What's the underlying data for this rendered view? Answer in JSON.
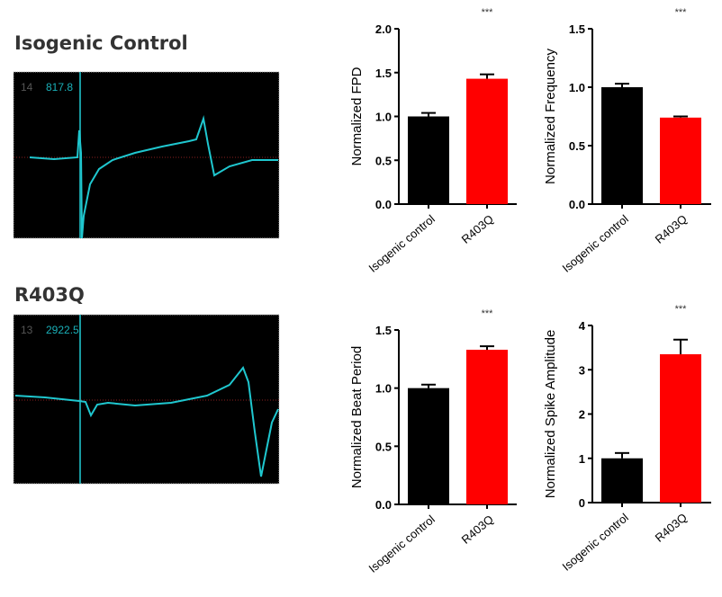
{
  "traces": [
    {
      "title": "Isogenic Control",
      "channel": "14",
      "value": "817.8"
    },
    {
      "title": "R403Q",
      "channel": "13",
      "value": "2922.5"
    }
  ],
  "colors": {
    "control": "#000000",
    "mutant": "#ff0000",
    "trace": "#1fc7cf",
    "trace_bg": "#000000"
  },
  "chart_data": [
    {
      "type": "bar",
      "title": "",
      "ylabel": "Normalized FPD",
      "categories": [
        "Isogenic control",
        "R403Q"
      ],
      "values": [
        1.0,
        1.43
      ],
      "errors": [
        0.04,
        0.05
      ],
      "ylim": [
        0,
        2.0
      ],
      "yticks": [
        "0.0",
        "0.5",
        "1.0",
        "1.5",
        "2.0"
      ],
      "significance": "***"
    },
    {
      "type": "bar",
      "title": "",
      "ylabel": "Normalized Frequency",
      "categories": [
        "Isogenic control",
        "R403Q"
      ],
      "values": [
        1.0,
        0.74
      ],
      "errors": [
        0.03,
        0.01
      ],
      "ylim": [
        0,
        1.5
      ],
      "yticks": [
        "0.0",
        "0.5",
        "1.0",
        "1.5"
      ],
      "significance": "***"
    },
    {
      "type": "bar",
      "title": "",
      "ylabel": "Normalized Beat Period",
      "categories": [
        "Isogenic control",
        "R403Q"
      ],
      "values": [
        1.0,
        1.33
      ],
      "errors": [
        0.03,
        0.03
      ],
      "ylim": [
        0,
        1.5
      ],
      "yticks": [
        "0.0",
        "0.5",
        "1.0",
        "1.5"
      ],
      "significance": "***"
    },
    {
      "type": "bar",
      "title": "",
      "ylabel": "Normalized Spike Amplitude",
      "categories": [
        "Isogenic control",
        "R403Q"
      ],
      "values": [
        1.0,
        3.35
      ],
      "errors": [
        0.12,
        0.33
      ],
      "ylim": [
        0,
        4
      ],
      "yticks": [
        "0",
        "1",
        "2",
        "3",
        "4"
      ],
      "significance": "***"
    }
  ]
}
